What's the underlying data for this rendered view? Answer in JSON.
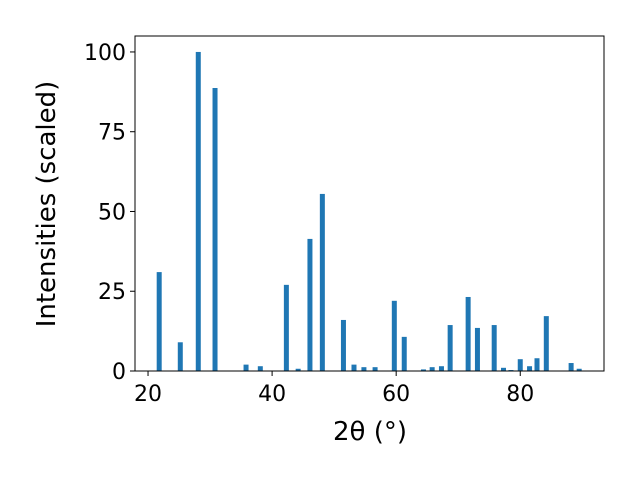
{
  "chart_data": {
    "type": "bar",
    "x_label": "2θ (°)",
    "y_label": "Intensities (scaled)",
    "x": [
      21.8,
      25.2,
      28.1,
      30.8,
      35.8,
      38.1,
      42.3,
      44.2,
      46.1,
      48.1,
      51.5,
      53.2,
      54.8,
      56.6,
      59.7,
      61.3,
      64.4,
      65.8,
      67.3,
      68.7,
      71.6,
      73.1,
      75.8,
      77.3,
      78.5,
      80.0,
      81.5,
      82.7,
      84.2,
      88.2,
      89.5
    ],
    "values": [
      31,
      9,
      100,
      88.7,
      2,
      1.5,
      27,
      0.7,
      41.4,
      55.5,
      16,
      2,
      1.2,
      1.2,
      22,
      10.7,
      0.5,
      1.2,
      1.5,
      14.4,
      23.2,
      13.5,
      14.4,
      1,
      0.3,
      3.7,
      1.5,
      4,
      17.2,
      2.5,
      0.7
    ],
    "color": "#1f77b4",
    "xlim": [
      17.9,
      93.5
    ],
    "xticks": [
      20,
      40,
      60,
      80
    ],
    "ylim": [
      0,
      105
    ],
    "yticks": [
      0,
      25,
      50,
      75,
      100
    ],
    "grid": false
  }
}
